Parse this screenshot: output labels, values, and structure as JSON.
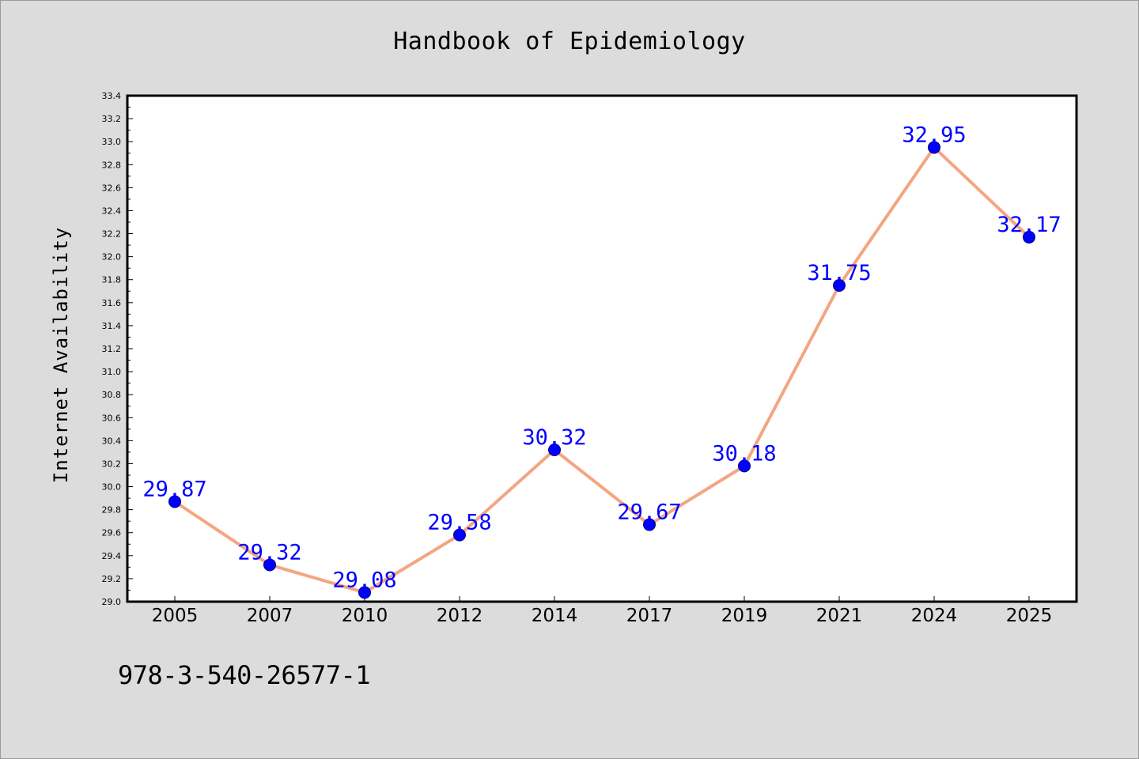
{
  "chart_data": {
    "type": "line",
    "title": "Handbook of Epidemiology",
    "xlabel": "",
    "ylabel": "Internet Availability",
    "categories": [
      "2005",
      "2007",
      "2010",
      "2012",
      "2014",
      "2017",
      "2019",
      "2021",
      "2024",
      "2025"
    ],
    "series": [
      {
        "values": [
          29.87,
          29.32,
          29.08,
          29.58,
          30.32,
          29.67,
          30.18,
          31.75,
          32.95,
          32.17
        ],
        "data_labels": [
          "29.87",
          "29.32",
          "29.08",
          "29.58",
          "30.32",
          "29.67",
          "30.18",
          "31.75",
          "32.95",
          "32.17"
        ]
      }
    ],
    "ylim": [
      29.0,
      33.4
    ],
    "y_major_ticks": [
      "29.0",
      "29.2",
      "29.4",
      "29.6",
      "29.8",
      "30.0",
      "30.2",
      "30.4",
      "30.6",
      "30.8",
      "31.0",
      "31.2",
      "31.4",
      "31.6",
      "31.8",
      "32.0",
      "32.2",
      "32.4",
      "32.6",
      "32.8",
      "33.0",
      "33.2",
      "33.4"
    ],
    "grid": false,
    "legend": "none"
  },
  "footer_text": "978-3-540-26577-1",
  "colors": {
    "figure_background": "#dcdcdc",
    "plot_background": "#ffffff",
    "line": "#f4a582",
    "marker": "#0000ff",
    "data_label": "#0000ff",
    "axis": "#000000"
  }
}
